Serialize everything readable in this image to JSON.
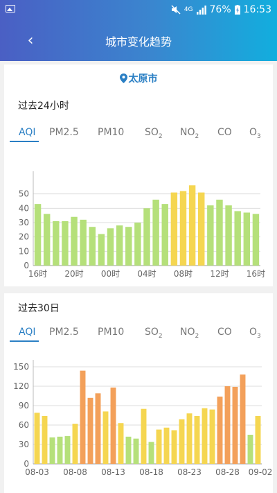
{
  "status_bar": {
    "network": "4G",
    "battery": "76%",
    "time": "16:53"
  },
  "header": {
    "back_icon": "chevron-left-icon",
    "title": "城市变化趋势"
  },
  "city": {
    "name": "太原市",
    "icon": "location-pin-icon"
  },
  "hourly": {
    "section_title": "过去24小时",
    "tabs": [
      {
        "label": "AQI",
        "sub": ""
      },
      {
        "label": "PM2.5",
        "sub": ""
      },
      {
        "label": "PM10",
        "sub": ""
      },
      {
        "label": "SO",
        "sub": "2"
      },
      {
        "label": "NO",
        "sub": "2"
      },
      {
        "label": "CO",
        "sub": ""
      },
      {
        "label": "O",
        "sub": "3"
      }
    ],
    "active_tab": 0
  },
  "daily": {
    "section_title": "过去30日",
    "tabs": [
      {
        "label": "AQI",
        "sub": ""
      },
      {
        "label": "PM2.5",
        "sub": ""
      },
      {
        "label": "PM10",
        "sub": ""
      },
      {
        "label": "SO",
        "sub": "2"
      },
      {
        "label": "NO",
        "sub": "2"
      },
      {
        "label": "CO",
        "sub": ""
      },
      {
        "label": "O",
        "sub": "3"
      }
    ],
    "active_tab": 0
  },
  "colors": {
    "accent": "#2a7fc4",
    "good": "#b5e07a",
    "moderate": "#f5d651",
    "unhealthy_sensitive": "#f3a05a"
  },
  "chart_data": [
    {
      "type": "bar",
      "title": "过去24小时",
      "ylim": [
        0,
        60
      ],
      "yticks": [
        0,
        10,
        20,
        30,
        40,
        50
      ],
      "x_tick_labels": [
        "16时",
        "20时",
        "00时",
        "04时",
        "08时",
        "12时",
        "16时"
      ],
      "x_tick_indices": [
        0,
        4,
        8,
        12,
        16,
        20,
        24
      ],
      "values": [
        43,
        36,
        31,
        31,
        34,
        32,
        27,
        22,
        26,
        28,
        27,
        30,
        40,
        46,
        43,
        51,
        52,
        56,
        51,
        42,
        46,
        42,
        38,
        37,
        36
      ],
      "colors": [
        "#b5e07a",
        "#b5e07a",
        "#b5e07a",
        "#b5e07a",
        "#b5e07a",
        "#b5e07a",
        "#b5e07a",
        "#b5e07a",
        "#b5e07a",
        "#b5e07a",
        "#b5e07a",
        "#b5e07a",
        "#b5e07a",
        "#b5e07a",
        "#b5e07a",
        "#f5d651",
        "#f5d651",
        "#f5d651",
        "#f5d651",
        "#b5e07a",
        "#b5e07a",
        "#b5e07a",
        "#b5e07a",
        "#b5e07a",
        "#b5e07a"
      ]
    },
    {
      "type": "bar",
      "title": "过去30日",
      "ylim": [
        0,
        150
      ],
      "yticks": [
        0,
        30,
        60,
        90,
        120,
        150
      ],
      "x_tick_labels": [
        "08-03",
        "08-08",
        "08-13",
        "08-18",
        "08-23",
        "08-28",
        "09-02"
      ],
      "x_tick_indices": [
        0,
        5,
        10,
        15,
        20,
        25,
        30
      ],
      "values": [
        79,
        74,
        41,
        42,
        43,
        62,
        144,
        102,
        109,
        81,
        118,
        63,
        42,
        39,
        85,
        34,
        53,
        56,
        52,
        69,
        78,
        74,
        86,
        84,
        104,
        120,
        119,
        138,
        45,
        74
      ],
      "colors": [
        "#f5d651",
        "#f5d651",
        "#b5e07a",
        "#b5e07a",
        "#b5e07a",
        "#f5d651",
        "#f3a05a",
        "#f3a05a",
        "#f3a05a",
        "#f5d651",
        "#f3a05a",
        "#f5d651",
        "#b5e07a",
        "#b5e07a",
        "#f5d651",
        "#b5e07a",
        "#f5d651",
        "#f5d651",
        "#f5d651",
        "#f5d651",
        "#f5d651",
        "#f5d651",
        "#f5d651",
        "#f5d651",
        "#f3a05a",
        "#f3a05a",
        "#f3a05a",
        "#f3a05a",
        "#b5e07a",
        "#f5d651"
      ]
    }
  ]
}
